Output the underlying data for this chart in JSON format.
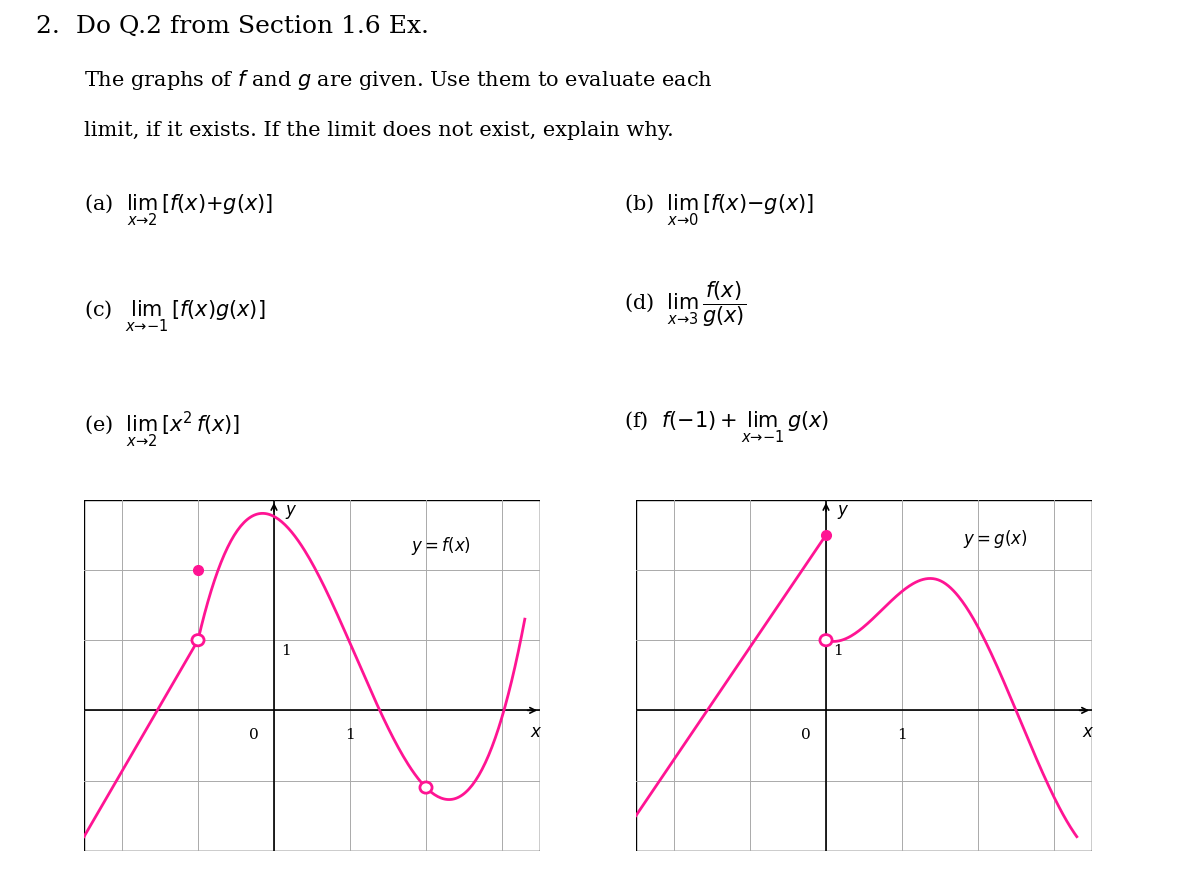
{
  "title": "2.  Do Q.2 from Section 1.6 Ex.",
  "intro_line1": "The graphs of $f$ and $g$ are given. Use them to evaluate each",
  "intro_line2": "limit, if it exists. If the limit does not exist, explain why.",
  "problems": [
    {
      "label": "(a)",
      "text": "$\\lim_{x\\to2}\\,[f(x) + g(x)]$"
    },
    {
      "label": "(b)",
      "text": "$\\lim_{x\\to0}\\,[f(x) - g(x)]$"
    },
    {
      "label": "(c)",
      "text": "$\\lim_{x\\to-1}\\,[f(x)g(x)]$"
    },
    {
      "label": "(d)",
      "text": "$\\lim_{x\\to3}\\,\\dfrac{f(x)}{g(x)}$"
    },
    {
      "label": "(e)",
      "text": "$\\lim_{x\\to2}\\,[x^2 f(x)]$"
    },
    {
      "label": "(f)",
      "text": "$f(-1) + \\lim_{x\\to-1}\\, g(x)$"
    }
  ],
  "curve_color": "#FF1493",
  "bg_color": "#FFFFFF",
  "grid_color": "#AAAAAA",
  "axis_color": "#000000",
  "text_color": "#000000"
}
